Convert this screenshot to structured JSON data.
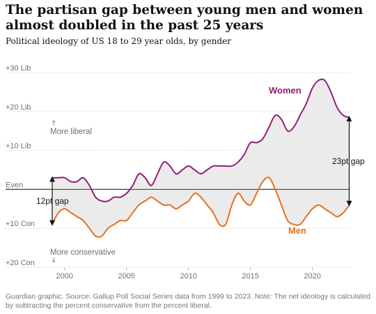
{
  "title": "The partisan gap between young men and women almost doubled in the past 25 years",
  "subtitle": "Political ideology of US 18 to 29 year olds, by gender",
  "footnote": "Guardian graphic. Source: Gallup Poll Social Series data from 1999 to 2023. Note: The net ideology is calculated by subtracting the percent conservative from the percent liberal.",
  "colors": {
    "women": "#8f1f7a",
    "men": "#e6711b",
    "gap_fill": "#ebebeb",
    "axis": "#333333",
    "grid": "#dcdcdc"
  },
  "chart_data": {
    "type": "line",
    "title": "The partisan gap between young men and women almost doubled in the past 25 years",
    "subtitle": "Political ideology of US 18 to 29 year olds, by gender",
    "xlabel": "",
    "ylabel": "",
    "xlim": [
      1999,
      2023
    ],
    "ylim": [
      -20,
      30
    ],
    "xticks": [
      2000,
      2005,
      2010,
      2015,
      2020
    ],
    "yticks": [
      {
        "value": 30,
        "label": "+30 Lib"
      },
      {
        "value": 20,
        "label": "+20 Lib"
      },
      {
        "value": 10,
        "label": "+10 Lib"
      },
      {
        "value": 0,
        "label": "Even"
      },
      {
        "value": -10,
        "label": "+10 Con"
      },
      {
        "value": -20,
        "label": "+20 Con"
      }
    ],
    "grid": true,
    "series": [
      {
        "name": "Women",
        "x": [
          1999,
          1999.5,
          2000,
          2000.5,
          2001,
          2001.5,
          2002,
          2002.5,
          2003,
          2003.5,
          2004,
          2004.5,
          2005,
          2005.5,
          2006,
          2006.5,
          2007,
          2007.5,
          2008,
          2008.5,
          2009,
          2009.5,
          2010,
          2010.5,
          2011,
          2011.5,
          2012,
          2012.5,
          2013,
          2013.5,
          2014,
          2014.5,
          2015,
          2015.5,
          2016,
          2016.5,
          2017,
          2017.5,
          2018,
          2018.5,
          2019,
          2019.5,
          2020,
          2020.5,
          2021,
          2021.5,
          2022,
          2022.5,
          2023
        ],
        "values": [
          3,
          3,
          3,
          2,
          2,
          3,
          1,
          -2,
          -3,
          -3,
          -2,
          -2,
          -1,
          1,
          4,
          3,
          1,
          4,
          7,
          6,
          4,
          5,
          6,
          5,
          4,
          5,
          6,
          6,
          6,
          6,
          7,
          9,
          12,
          12,
          13,
          16,
          19,
          18,
          15,
          16,
          19,
          22,
          26,
          28,
          28,
          25,
          21,
          19,
          18.5
        ]
      },
      {
        "name": "Men",
        "x": [
          1999,
          1999.5,
          2000,
          2000.5,
          2001,
          2001.5,
          2002,
          2002.5,
          2003,
          2003.5,
          2004,
          2004.5,
          2005,
          2005.5,
          2006,
          2006.5,
          2007,
          2007.5,
          2008,
          2008.5,
          2009,
          2009.5,
          2010,
          2010.5,
          2011,
          2011.5,
          2012,
          2012.5,
          2013,
          2013.5,
          2014,
          2014.5,
          2015,
          2015.5,
          2016,
          2016.5,
          2017,
          2017.5,
          2018,
          2018.5,
          2019,
          2019.5,
          2020,
          2020.5,
          2021,
          2021.5,
          2022,
          2022.5,
          2023
        ],
        "values": [
          -9,
          -6,
          -5,
          -6,
          -7,
          -8,
          -10,
          -12,
          -12,
          -10,
          -9,
          -8,
          -8,
          -6,
          -4,
          -3,
          -2,
          -3,
          -4,
          -4,
          -5,
          -4,
          -3,
          -1,
          -2,
          -4,
          -6,
          -9,
          -9,
          -4,
          -1,
          -3,
          -4,
          -1,
          2,
          3,
          0,
          -4,
          -8,
          -9,
          -9,
          -7,
          -5,
          -4,
          -5,
          -6,
          -7,
          -6,
          -4
        ]
      }
    ],
    "annotations": {
      "more_liberal": "More liberal",
      "more_conservative": "More conservative",
      "start_gap": "12pt gap",
      "end_gap": "23pt gap",
      "women_label": "Women",
      "men_label": "Men"
    }
  }
}
